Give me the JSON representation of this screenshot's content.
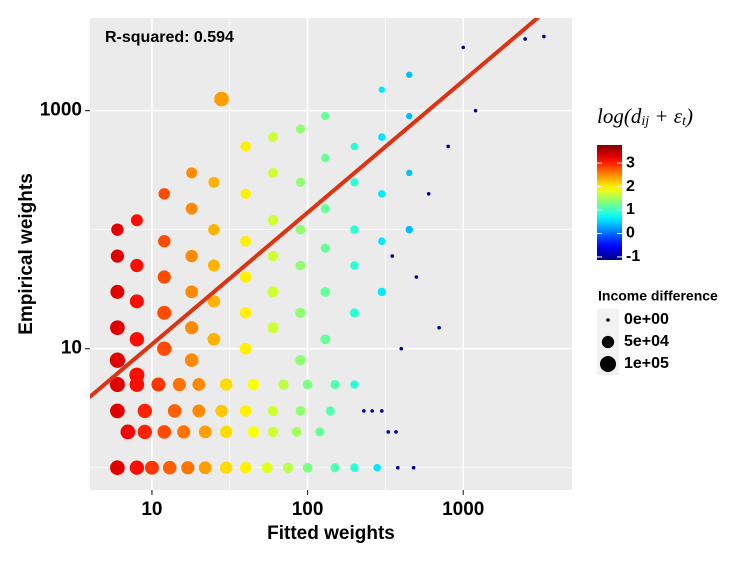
{
  "chart_data": {
    "type": "scatter",
    "annotation": "R-squared: 0.594",
    "x_label": "Fitted weights",
    "y_label": "Empirical weights",
    "log_x": true,
    "log_y": true,
    "grid": true,
    "xlim": [
      4,
      5000
    ],
    "ylim": [
      0.65,
      6000
    ],
    "xticks": [
      10,
      100,
      1000
    ],
    "yticks": [
      10,
      1000
    ],
    "xminor": [
      31.6,
      316
    ],
    "yminor": [
      1,
      100
    ],
    "panel_color": "#ebebeb",
    "colormap": "jet",
    "color_title": [
      {
        "text": "log(d"
      },
      {
        "text": "ij",
        "sub": true
      },
      {
        "text": " + ε"
      },
      {
        "text": "t",
        "sub": true
      },
      {
        "text": ")"
      }
    ],
    "colorlim": [
      -1.13,
      3.77
    ],
    "color_ticks": [
      3,
      2,
      1,
      0,
      {
        "value": -1,
        "label": "-1"
      }
    ],
    "size_title": "Income difference",
    "size_ticks": [
      {
        "value": 0,
        "label": "0e+00"
      },
      {
        "value": 50000,
        "label": "5e+04"
      },
      {
        "value": 100000,
        "label": "1e+05"
      }
    ],
    "fit_line": {
      "x": [
        4,
        3000
      ],
      "values": [
        3.95,
        6000
      ],
      "color": "#dd3311"
    },
    "series": [
      {
        "x": [
          6,
          8,
          10,
          13,
          17,
          22,
          30,
          40,
          55,
          75,
          100,
          150,
          200,
          280,
          380,
          480,
          7,
          9,
          12,
          16,
          22,
          30,
          45,
          60,
          85,
          120,
          330,
          370,
          6,
          9,
          14,
          20,
          28,
          40,
          60,
          90,
          140,
          230,
          260,
          300,
          6,
          8,
          11,
          15,
          20,
          30,
          45,
          70,
          100,
          150,
          200,
          6,
          6,
          6,
          6,
          6,
          8,
          8,
          8,
          8,
          8,
          12,
          12,
          12,
          12,
          12,
          18,
          18,
          18,
          18,
          18,
          18,
          25,
          25,
          25,
          25,
          25,
          28,
          40,
          40,
          40,
          40,
          40,
          40,
          60,
          60,
          60,
          60,
          60,
          60,
          90,
          90,
          90,
          90,
          90,
          90,
          130,
          130,
          130,
          130,
          130,
          130,
          200,
          200,
          200,
          200,
          200,
          300,
          300,
          300,
          300,
          300,
          450,
          450,
          450,
          450,
          350,
          500,
          600,
          800,
          1200,
          2500,
          3300,
          700,
          400,
          1000
        ],
        "values": [
          1,
          1,
          1,
          1,
          1,
          1,
          1,
          1,
          1,
          1,
          1,
          1,
          1,
          1,
          1,
          1,
          2,
          2,
          2,
          2,
          2,
          2,
          2,
          2,
          2,
          2,
          2,
          2,
          3,
          3,
          3,
          3,
          3,
          3,
          3,
          3,
          3,
          3,
          3,
          3,
          5,
          5,
          5,
          5,
          5,
          5,
          5,
          5,
          5,
          5,
          5,
          8,
          15,
          30,
          60,
          100,
          6,
          12,
          25,
          50,
          120,
          10,
          20,
          40,
          80,
          200,
          8,
          15,
          30,
          60,
          150,
          300,
          12,
          25,
          50,
          100,
          250,
          1250,
          10,
          20,
          40,
          80,
          200,
          500,
          15,
          30,
          60,
          120,
          300,
          600,
          8,
          20,
          50,
          100,
          250,
          700,
          12,
          30,
          70,
          150,
          400,
          900,
          20,
          50,
          100,
          250,
          500,
          30,
          80,
          200,
          600,
          1500,
          100,
          300,
          900,
          2000,
          60,
          40,
          200,
          500,
          1000,
          4000,
          4200,
          15,
          10,
          3400
        ],
        "color_values": [
          3.3,
          3.1,
          2.9,
          2.7,
          2.6,
          2.4,
          2.1,
          2.0,
          1.8,
          1.6,
          1.3,
          1.1,
          0.9,
          0.6,
          -1,
          -1,
          3.2,
          3.0,
          2.8,
          2.6,
          2.4,
          2.1,
          1.9,
          1.7,
          1.5,
          1.2,
          -1,
          -1,
          3.3,
          3.0,
          2.7,
          2.5,
          2.2,
          2.0,
          1.7,
          1.4,
          1.1,
          -1,
          -1,
          -1,
          3.3,
          3.1,
          2.9,
          2.6,
          2.5,
          2.1,
          1.9,
          1.6,
          1.3,
          1.1,
          0.9,
          3.3,
          3.3,
          3.3,
          3.3,
          3.3,
          3.1,
          3.1,
          3.1,
          3.1,
          3.1,
          2.8,
          2.8,
          2.8,
          2.8,
          2.8,
          2.5,
          2.5,
          2.5,
          2.5,
          2.5,
          2.5,
          2.3,
          2.3,
          2.3,
          2.3,
          2.3,
          2.4,
          2.0,
          2.0,
          2.0,
          2.0,
          2.0,
          2.0,
          1.7,
          1.7,
          1.7,
          1.7,
          1.7,
          1.7,
          1.4,
          1.4,
          1.4,
          1.4,
          1.4,
          1.4,
          1.2,
          1.2,
          1.2,
          1.2,
          1.2,
          1.2,
          0.9,
          0.9,
          0.9,
          0.9,
          0.9,
          0.6,
          0.6,
          0.6,
          0.6,
          0.6,
          0.4,
          0.4,
          0.4,
          0.4,
          -1,
          -1,
          -1,
          -1,
          -1,
          -1,
          -1,
          -1,
          -1,
          -1
        ],
        "size_values": [
          80000,
          75000,
          70000,
          65000,
          60000,
          55000,
          50000,
          40000,
          35000,
          30000,
          25000,
          20000,
          15000,
          10000,
          0,
          0,
          80000,
          75000,
          65000,
          60000,
          55000,
          50000,
          40000,
          30000,
          25000,
          20000,
          0,
          0,
          80000,
          75000,
          65000,
          55000,
          50000,
          40000,
          30000,
          25000,
          20000,
          0,
          0,
          0,
          85000,
          80000,
          70000,
          60000,
          55000,
          50000,
          40000,
          30000,
          25000,
          20000,
          15000,
          90000,
          80000,
          70000,
          60000,
          50000,
          85000,
          75000,
          70000,
          60000,
          45000,
          75000,
          70000,
          60000,
          50000,
          40000,
          65000,
          60000,
          55000,
          50000,
          45000,
          35000,
          55000,
          50000,
          45000,
          40000,
          35000,
          80000,
          45000,
          40000,
          40000,
          35000,
          30000,
          30000,
          35000,
          35000,
          30000,
          30000,
          25000,
          25000,
          30000,
          30000,
          25000,
          25000,
          20000,
          20000,
          25000,
          25000,
          20000,
          20000,
          15000,
          15000,
          20000,
          15000,
          15000,
          15000,
          10000,
          15000,
          10000,
          10000,
          10000,
          5000,
          10000,
          5000,
          5000,
          5000,
          0,
          0,
          0,
          0,
          0,
          0,
          0,
          0,
          0,
          0
        ]
      }
    ]
  }
}
